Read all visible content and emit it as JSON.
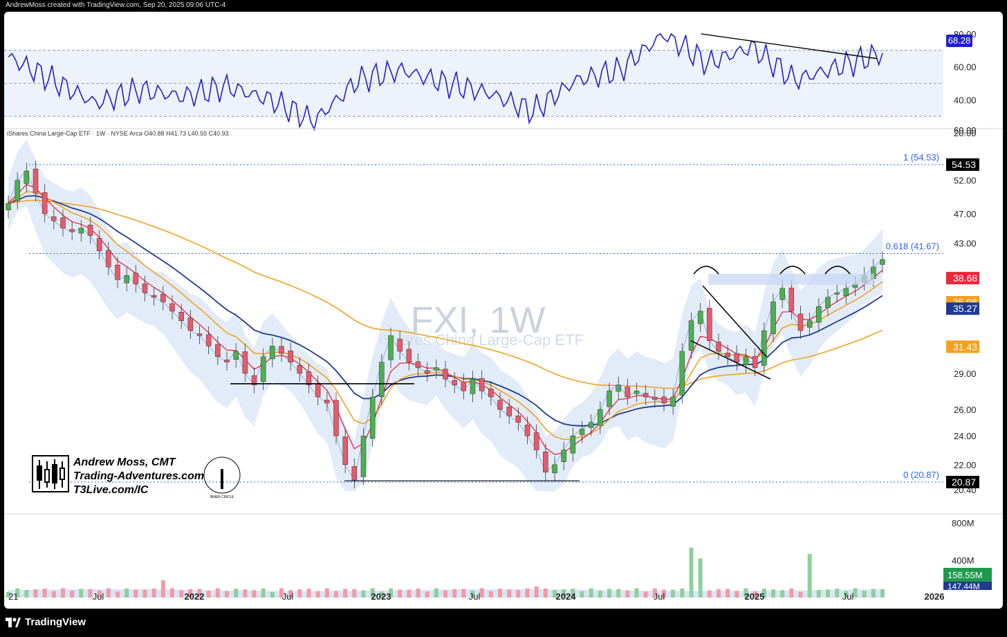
{
  "credit": "AndrewMoss created with TradingView.com, Sep 20, 2025 09:06 UTC-4",
  "brand": {
    "name": "TradingView"
  },
  "symbol_line": "iShares China Large-Cap ETF · 1W · NYSE Arca  O40.88  H41.73  L40.55  C40.93",
  "watermark": {
    "ticker": "FXI, 1W",
    "name": "iShares China Large-Cap ETF"
  },
  "author_box": {
    "line1": "Andrew Moss, CMT",
    "line2": "Trading-Adventures.com",
    "line3": "T3Live.com/IC",
    "badge": "INNER CIRCLE"
  },
  "colors": {
    "rsi": "#1f1fce",
    "ema_red": "#e8283b",
    "ema_orange": "#f4a020",
    "sma_navy": "#1f3a8f",
    "up": "#4caf50",
    "down": "#e85a6a",
    "fib": "#2962ff",
    "band": "#dfe9f7"
  },
  "chart_data": [
    {
      "type": "line",
      "name_panel": "rsi",
      "y_ticks": [
        "80.00",
        "60.00",
        "40.00",
        "20.00"
      ],
      "ylim": [
        20,
        82
      ],
      "guide_levels": [
        70,
        50,
        30
      ],
      "last_value_label": "68.28",
      "x": [
        "2021-03",
        "2021-06",
        "2021-09",
        "2021-12",
        "2022-03",
        "2022-06",
        "2022-09",
        "2022-11",
        "2023-01",
        "2023-04",
        "2023-07",
        "2023-10",
        "2024-01",
        "2024-04",
        "2024-07",
        "2024-10",
        "2025-01",
        "2025-03",
        "2025-05",
        "2025-07",
        "2025-09"
      ],
      "values": [
        66,
        52,
        38,
        46,
        42,
        48,
        40,
        27,
        52,
        58,
        50,
        44,
        33,
        52,
        58,
        80,
        62,
        72,
        52,
        60,
        68.3
      ]
    },
    {
      "type": "candlestick",
      "name_panel": "price",
      "y_ticks": [
        "60.00",
        "52.00",
        "47.00",
        "43.00",
        "38.68",
        "35.96",
        "35.27",
        "31.43",
        "29.00",
        "26.00",
        "24.00",
        "22.00",
        "20.40"
      ],
      "scale": "log",
      "ylim": [
        20.2,
        60
      ],
      "fib_levels": [
        {
          "label": "1 (54.53)",
          "price": 54.53,
          "tag": "54.53"
        },
        {
          "label": "0.618 (41.67)",
          "price": 41.67,
          "tag": ""
        },
        {
          "label": "0 (20.87)",
          "price": 20.87,
          "tag": "20.87"
        }
      ],
      "price_tags": [
        {
          "value": "38.68",
          "color": "#e8283b"
        },
        {
          "value": "35.96",
          "color": "#f4a020"
        },
        {
          "value": "35.27",
          "color": "#1f3a8f"
        },
        {
          "value": "31.43",
          "color": "#f4a020"
        }
      ],
      "last_ohlc": {
        "open": 40.88,
        "high": 41.73,
        "low": 40.55,
        "close": 40.93
      },
      "x_ticks": [
        "21",
        "Jul",
        "2022",
        "Jul",
        "2023",
        "Jul",
        "2024",
        "Jul",
        "2025",
        "Jul",
        "2026"
      ],
      "closes": [
        48.5,
        52,
        53.5,
        50,
        47,
        46,
        45,
        44.5,
        45,
        44,
        42,
        40,
        38.5,
        39,
        38,
        37,
        36.5,
        36,
        35,
        34,
        33,
        32.5,
        31.5,
        30.5,
        30,
        31,
        29,
        28,
        30.5,
        31.5,
        30.8,
        30,
        29,
        28,
        27,
        26.5,
        24,
        22,
        21,
        24,
        27,
        30,
        32.5,
        31,
        30,
        29.5,
        29,
        29.5,
        28.5,
        28,
        27.5,
        28.5,
        27.5,
        27,
        26,
        25.5,
        25,
        24,
        23,
        21.5,
        22,
        23,
        24,
        24.5,
        25,
        26,
        27.5,
        28,
        27,
        27.5,
        27,
        26.8,
        26.5,
        27,
        31,
        34,
        35,
        32,
        31,
        30.5,
        30,
        30.5,
        29.5,
        33,
        36,
        37.5,
        35,
        33,
        34,
        35.5,
        36.5,
        37,
        37.5,
        38,
        39,
        40,
        40.93
      ]
    },
    {
      "type": "bar",
      "name_panel": "volume",
      "y_ticks": [
        "800M",
        "400M"
      ],
      "ylim": [
        0,
        900
      ],
      "unit": "M",
      "last_value_label": "158.55M",
      "avg_label": "147.44M"
    }
  ]
}
